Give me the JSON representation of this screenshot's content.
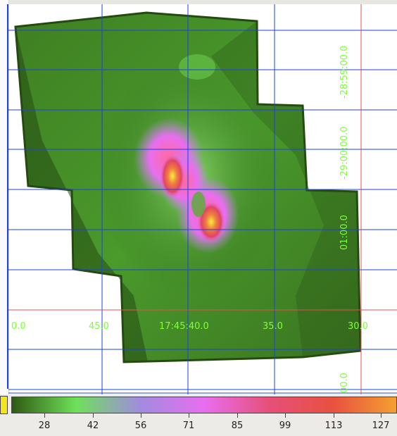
{
  "ra_labels": [
    "0.0",
    "45.0",
    "17:45:40.0",
    "35.0",
    "30.0"
  ],
  "dec_labels": [
    "-28:59:00.0",
    "-29:00:00.0",
    "01:00.0",
    "00.0"
  ],
  "colorbar": {
    "ticks": [
      "28",
      "42",
      "56",
      "71",
      "85",
      "99",
      "113",
      "127"
    ],
    "gradient": [
      "#2f5a12",
      "#6fe05a",
      "#a18be0",
      "#e86ef0",
      "#e6507a",
      "#e85040",
      "#f4a030"
    ]
  },
  "colors": {
    "grid": "#2040e0",
    "crosshair": "#e05050",
    "label": "#7dff3a"
  }
}
